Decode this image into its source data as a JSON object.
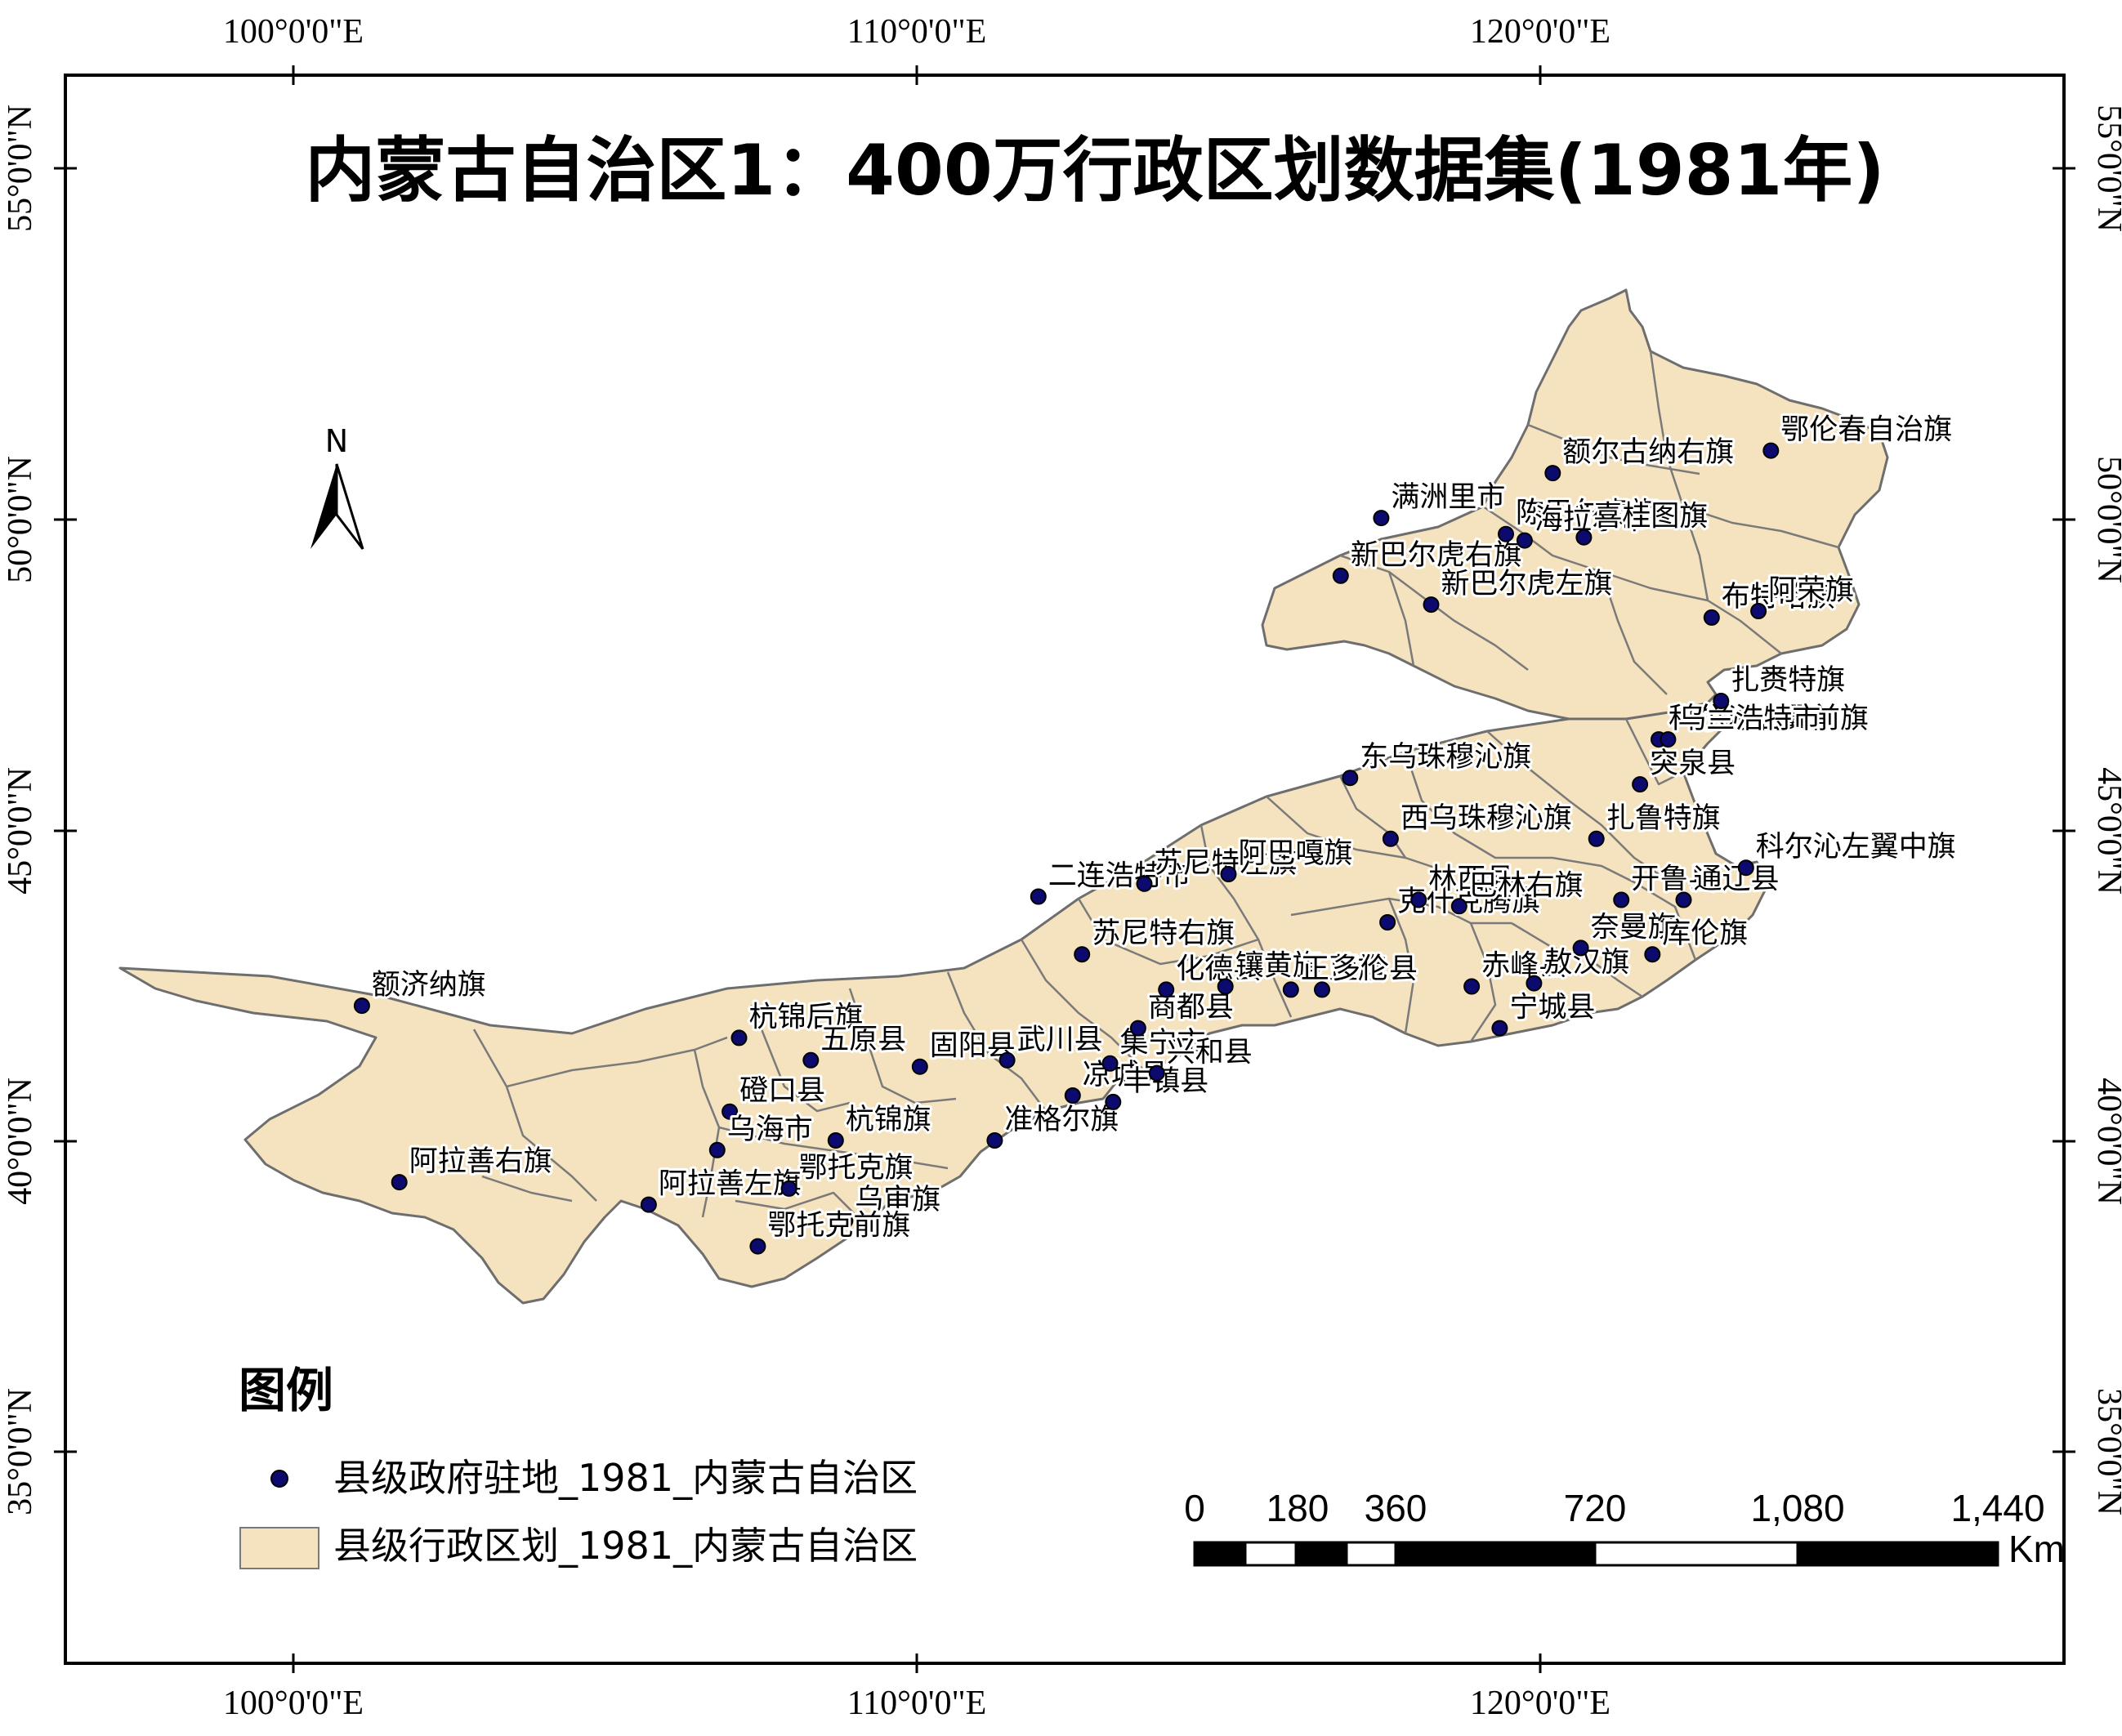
{
  "title": "内蒙古自治区1：400万行政区划数据集(1981年)",
  "graticule": {
    "longitudes": [
      "100°0'0\"E",
      "110°0'0\"E",
      "120°0'0\"E"
    ],
    "latitudes": [
      "55°0'0\"N",
      "50°0'0\"N",
      "45°0'0\"N",
      "40°0'0\"N",
      "35°0'0\"N"
    ]
  },
  "north_arrow": {
    "label": "N"
  },
  "legend": {
    "title": "图例",
    "items": [
      {
        "symbol": "point",
        "label": "县级政府驻地_1981_内蒙古自治区",
        "color": "#0c0a6e"
      },
      {
        "symbol": "polygon",
        "label": "县级行政区划_1981_内蒙古自治区",
        "color": "#f5e3bf"
      }
    ]
  },
  "scale_bar": {
    "ticks": [
      "0",
      "180",
      "360",
      "720",
      "1,080",
      "1,440"
    ],
    "unit": "Km"
  },
  "colors": {
    "fill": "#f5e3bf",
    "border": "#7a7a7a",
    "point": "#0c0a6e"
  },
  "places": [
    {
      "name": "额济纳旗",
      "lon": 101.1,
      "lat": 41.95
    },
    {
      "name": "阿拉善右旗",
      "lon": 101.7,
      "lat": 39.2
    },
    {
      "name": "阿拉善左旗",
      "lon": 105.7,
      "lat": 38.85
    },
    {
      "name": "杭锦后旗",
      "lon": 107.15,
      "lat": 41.45
    },
    {
      "name": "磴口县",
      "lon": 107.0,
      "lat": 40.3
    },
    {
      "name": "乌海市",
      "lon": 106.8,
      "lat": 39.7
    },
    {
      "name": "五原县",
      "lon": 108.3,
      "lat": 41.1
    },
    {
      "name": "固阳县",
      "lon": 110.05,
      "lat": 41.0
    },
    {
      "name": "杭锦旗",
      "lon": 108.7,
      "lat": 39.85
    },
    {
      "name": "鄂托克旗",
      "lon": 107.95,
      "lat": 39.1
    },
    {
      "name": "乌审旗",
      "lon": 108.85,
      "lat": 38.6
    },
    {
      "name": "鄂托克前旗",
      "lon": 107.45,
      "lat": 38.2
    },
    {
      "name": "准格尔旗",
      "lon": 111.25,
      "lat": 39.85
    },
    {
      "name": "凉城县",
      "lon": 112.5,
      "lat": 40.55
    },
    {
      "name": "丰镇县",
      "lon": 113.15,
      "lat": 40.45
    },
    {
      "name": "武川县",
      "lon": 111.45,
      "lat": 41.1
    },
    {
      "name": "集宁市",
      "lon": 113.1,
      "lat": 41.05
    },
    {
      "name": "兴和县",
      "lon": 113.85,
      "lat": 40.9
    },
    {
      "name": "商都县",
      "lon": 113.55,
      "lat": 41.6
    },
    {
      "name": "化德县",
      "lon": 114.0,
      "lat": 42.2
    },
    {
      "name": "苏尼特右旗",
      "lon": 112.65,
      "lat": 42.75
    },
    {
      "name": "二连浩特市",
      "lon": 111.95,
      "lat": 43.65
    },
    {
      "name": "苏尼特左旗",
      "lon": 113.65,
      "lat": 43.85
    },
    {
      "name": "镶黄旗",
      "lon": 114.95,
      "lat": 42.25
    },
    {
      "name": "阿巴嘎旗",
      "lon": 115.0,
      "lat": 44.0
    },
    {
      "name": "正蓝旗",
      "lon": 116.0,
      "lat": 42.2
    },
    {
      "name": "多伦县",
      "lon": 116.5,
      "lat": 42.2
    },
    {
      "name": "克什克腾旗",
      "lon": 117.55,
      "lat": 43.25
    },
    {
      "name": "东乌珠穆沁旗",
      "lon": 116.95,
      "lat": 45.5
    },
    {
      "name": "西乌珠穆沁旗",
      "lon": 117.6,
      "lat": 44.55
    },
    {
      "name": "林西县",
      "lon": 118.05,
      "lat": 43.6
    },
    {
      "name": "巴林右旗",
      "lon": 118.7,
      "lat": 43.5
    },
    {
      "name": "赤峰县",
      "lon": 118.9,
      "lat": 42.25
    },
    {
      "name": "敖汉旗",
      "lon": 119.9,
      "lat": 42.3
    },
    {
      "name": "宁城县",
      "lon": 119.35,
      "lat": 41.6
    },
    {
      "name": "奈曼旗",
      "lon": 120.65,
      "lat": 42.85
    },
    {
      "name": "开鲁县",
      "lon": 121.3,
      "lat": 43.6
    },
    {
      "name": "通辽县",
      "lon": 122.3,
      "lat": 43.6
    },
    {
      "name": "库伦旗",
      "lon": 121.8,
      "lat": 42.75
    },
    {
      "name": "科尔沁左翼中旗",
      "lon": 123.3,
      "lat": 44.1
    },
    {
      "name": "扎鲁特旗",
      "lon": 120.9,
      "lat": 44.55
    },
    {
      "name": "突泉县",
      "lon": 121.6,
      "lat": 45.4
    },
    {
      "name": "科尔沁右翼前旗",
      "lon": 121.9,
      "lat": 46.1
    },
    {
      "name": "乌兰浩特市",
      "lon": 122.05,
      "lat": 46.1
    },
    {
      "name": "扎赉特旗",
      "lon": 122.9,
      "lat": 46.7
    },
    {
      "name": "满洲里市",
      "lon": 117.45,
      "lat": 49.55
    },
    {
      "name": "新巴尔虎右旗",
      "lon": 116.8,
      "lat": 48.65
    },
    {
      "name": "新巴尔虎左旗",
      "lon": 118.25,
      "lat": 48.2
    },
    {
      "name": "陈巴尔虎旗",
      "lon": 119.45,
      "lat": 49.3
    },
    {
      "name": "海拉尔市",
      "lon": 119.75,
      "lat": 49.2
    },
    {
      "name": "喜桂图旗",
      "lon": 120.7,
      "lat": 49.25
    },
    {
      "name": "额尔古纳右旗",
      "lon": 120.2,
      "lat": 50.25
    },
    {
      "name": "鄂伦春自治旗",
      "lon": 123.7,
      "lat": 50.6
    },
    {
      "name": "布特哈旗",
      "lon": 122.75,
      "lat": 48.0
    },
    {
      "name": "阿荣旗",
      "lon": 123.5,
      "lat": 48.1
    }
  ]
}
